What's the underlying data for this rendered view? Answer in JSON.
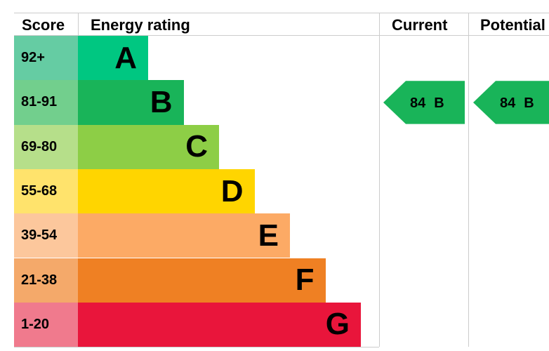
{
  "header": {
    "score": "Score",
    "rating": "Energy rating",
    "current": "Current",
    "potential": "Potential"
  },
  "rows": [
    {
      "score": "92+",
      "band": "A",
      "color": "#00c781",
      "light": "#65cca3"
    },
    {
      "score": "81-91",
      "band": "B",
      "color": "#19b459",
      "light": "#72cf8d"
    },
    {
      "score": "69-80",
      "band": "C",
      "color": "#8dce46",
      "light": "#b6df8a"
    },
    {
      "score": "55-68",
      "band": "D",
      "color": "#ffd500",
      "light": "#ffe36c"
    },
    {
      "score": "39-54",
      "band": "E",
      "color": "#fcaa65",
      "light": "#fcc79c"
    },
    {
      "score": "21-38",
      "band": "F",
      "color": "#ef8023",
      "light": "#f4a96a"
    },
    {
      "score": "1-20",
      "band": "G",
      "color": "#e9153b",
      "light": "#f07a8d"
    }
  ],
  "current": {
    "score": 84,
    "band": "B",
    "color": "#19b459"
  },
  "potential": {
    "score": 84,
    "band": "B",
    "color": "#19b459"
  }
}
